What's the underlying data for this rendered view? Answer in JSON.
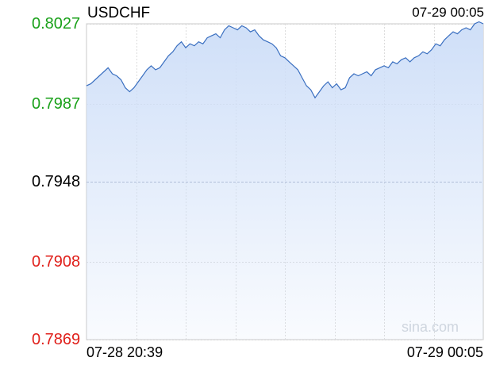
{
  "chart_data": {
    "type": "area",
    "title": "USDCHF",
    "timestamp": "07-29 00:05",
    "watermark": "sina.com",
    "x_labels": [
      "07-28 20:39",
      "07-29 00:05"
    ],
    "y_ticks": [
      {
        "label": "0.8027",
        "value": 0.8027,
        "color": "#1aa11a"
      },
      {
        "label": "0.7987",
        "value": 0.7987,
        "color": "#1aa11a"
      },
      {
        "label": "0.7948",
        "value": 0.7948,
        "color": "#000000"
      },
      {
        "label": "0.7908",
        "value": 0.7908,
        "color": "#e0201b"
      },
      {
        "label": "0.7869",
        "value": 0.7869,
        "color": "#e0201b"
      }
    ],
    "ylim": [
      0.7869,
      0.8027
    ],
    "reference_value": 0.7948,
    "grid": true,
    "line_color": "#3a6fc0",
    "fill_color": "#cfdff8",
    "series": [
      {
        "values": [
          0.7996,
          0.7997,
          0.7999,
          0.8001,
          0.8003,
          0.8005,
          0.8002,
          0.8001,
          0.7999,
          0.7995,
          0.7993,
          0.7995,
          0.7998,
          0.8001,
          0.8004,
          0.8006,
          0.8004,
          0.8005,
          0.8008,
          0.8011,
          0.8013,
          0.8016,
          0.8018,
          0.8015,
          0.8017,
          0.8016,
          0.8018,
          0.8017,
          0.802,
          0.8021,
          0.8022,
          0.802,
          0.8024,
          0.8026,
          0.8025,
          0.8024,
          0.8026,
          0.8025,
          0.8023,
          0.8024,
          0.8021,
          0.8019,
          0.8018,
          0.8017,
          0.8015,
          0.8011,
          0.801,
          0.8008,
          0.8006,
          0.8004,
          0.8,
          0.7996,
          0.7994,
          0.799,
          0.7993,
          0.7996,
          0.7998,
          0.7995,
          0.7997,
          0.7994,
          0.7995,
          0.8,
          0.8002,
          0.8001,
          0.8002,
          0.8003,
          0.8001,
          0.8004,
          0.8005,
          0.8006,
          0.8005,
          0.8008,
          0.8007,
          0.8009,
          0.801,
          0.8008,
          0.801,
          0.8011,
          0.8013,
          0.8012,
          0.8014,
          0.8017,
          0.8016,
          0.8019,
          0.8021,
          0.8023,
          0.8022,
          0.8024,
          0.8025,
          0.8024,
          0.8027,
          0.8028,
          0.8027
        ]
      }
    ]
  }
}
